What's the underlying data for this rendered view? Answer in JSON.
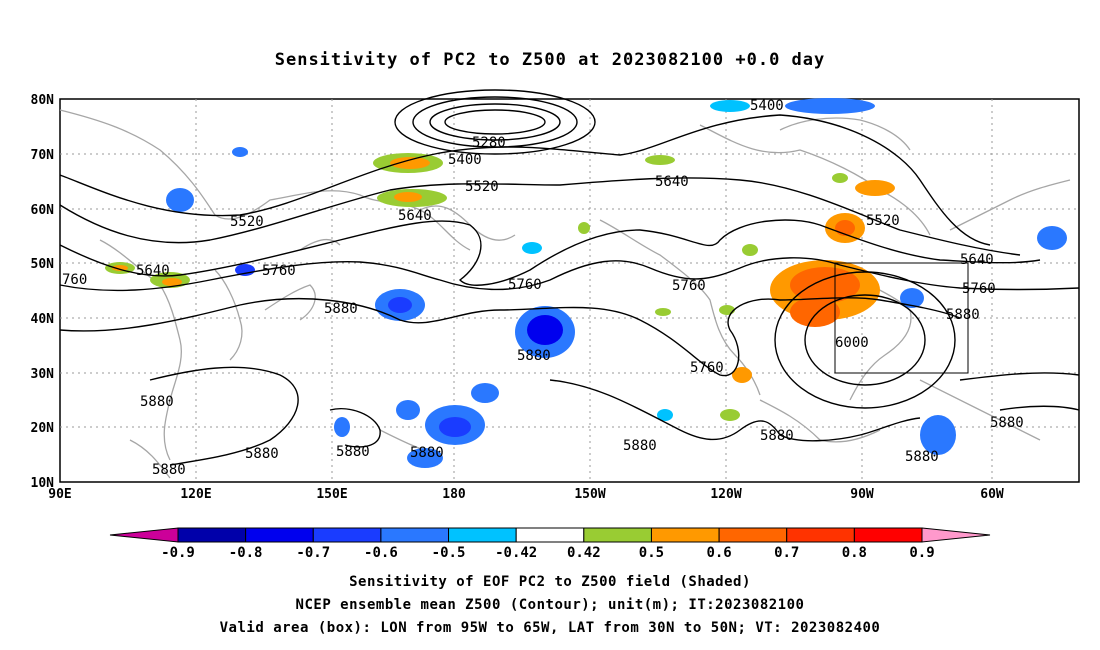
{
  "title": "Sensitivity of PC2 to Z500 at 2023082100 +0.0 day",
  "axes": {
    "lon_labels": [
      "90E",
      "120E",
      "150E",
      "180",
      "150W",
      "120W",
      "90W",
      "60W"
    ],
    "lat_labels": [
      "80N",
      "70N",
      "60N",
      "50N",
      "40N",
      "30N",
      "20N",
      "10N"
    ]
  },
  "contour_labels": [
    "5280",
    "5400",
    "5400",
    "5520",
    "5520",
    "5520",
    "5640",
    "5640",
    "5640",
    "5640",
    "5760",
    "5760",
    "5760",
    "5760",
    "5760",
    "6000",
    "5880",
    "5880",
    "5880",
    "5880",
    "5880",
    "5880",
    "5880",
    "5880",
    "5880",
    "5880",
    "5880",
    "760"
  ],
  "colorbar": {
    "labels": [
      "-0.9",
      "-0.8",
      "-0.7",
      "-0.6",
      "-0.5",
      "-0.42",
      "0.42",
      "0.5",
      "0.6",
      "0.7",
      "0.8",
      "0.9"
    ],
    "colors": [
      "#cc0099",
      "#0000aa",
      "#0000ee",
      "#1a3cff",
      "#2a78ff",
      "#00c2ff",
      "#ffffff",
      "#99cc33",
      "#ff9900",
      "#ff6600",
      "#ff3300",
      "#ff0000",
      "#ff99cc"
    ]
  },
  "captions": [
    "Sensitivity of EOF PC2 to Z500 field (Shaded)",
    "NCEP ensemble mean Z500 (Contour); unit(m); IT:2023082100",
    "Valid area (box): LON from 95W to 65W, LAT from 30N to 50N; VT: 2023082400"
  ],
  "valid_box": {
    "lon_min": "95W",
    "lon_max": "65W",
    "lat_min": "30N",
    "lat_max": "50N"
  }
}
